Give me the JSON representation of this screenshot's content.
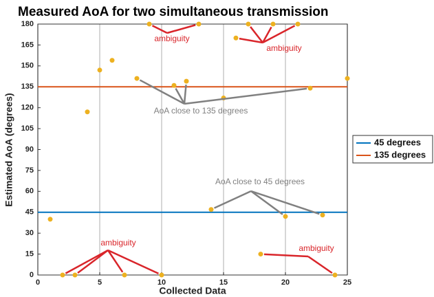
{
  "chart_data": {
    "type": "scatter",
    "title": "Measured AoA for two simultaneous transmission",
    "xlabel": "Collected Data",
    "ylabel": "Estimated AoA (degrees)",
    "x": [
      1,
      2,
      3,
      4,
      5,
      6,
      7,
      8,
      9,
      10,
      11,
      12,
      13,
      14,
      15,
      16,
      17,
      18,
      19,
      20,
      21,
      22,
      23,
      24,
      25
    ],
    "values": [
      40,
      0,
      0,
      117,
      147,
      154,
      0,
      141,
      180,
      0,
      136,
      139,
      180,
      47,
      127,
      170,
      180,
      15,
      180,
      42,
      180,
      134,
      43,
      0,
      141
    ],
    "color": "#edb120",
    "reference_lines": [
      {
        "name": "45 degrees",
        "value": 45,
        "color": "#0072bd"
      },
      {
        "name": "135 degrees",
        "value": 135,
        "color": "#d95319"
      }
    ],
    "annotations": [
      {
        "text": "ambiguity",
        "color": "#d9252a"
      },
      {
        "text": "ambiguity",
        "color": "#d9252a"
      },
      {
        "text": "ambiguity",
        "color": "#d9252a"
      },
      {
        "text": "ambiguity",
        "color": "#d9252a"
      },
      {
        "text": "AoA close to 135 degrees",
        "color": "#808080"
      },
      {
        "text": "AoA close to 45 degrees",
        "color": "#808080"
      }
    ],
    "xlim": [
      0,
      25
    ],
    "xticks": [
      0,
      5,
      10,
      15,
      20,
      25
    ],
    "ylim": [
      0,
      180
    ],
    "yticks": [
      0,
      15,
      30,
      45,
      60,
      75,
      90,
      105,
      120,
      135,
      150,
      165,
      180
    ],
    "grid": "x",
    "legend": "right"
  }
}
